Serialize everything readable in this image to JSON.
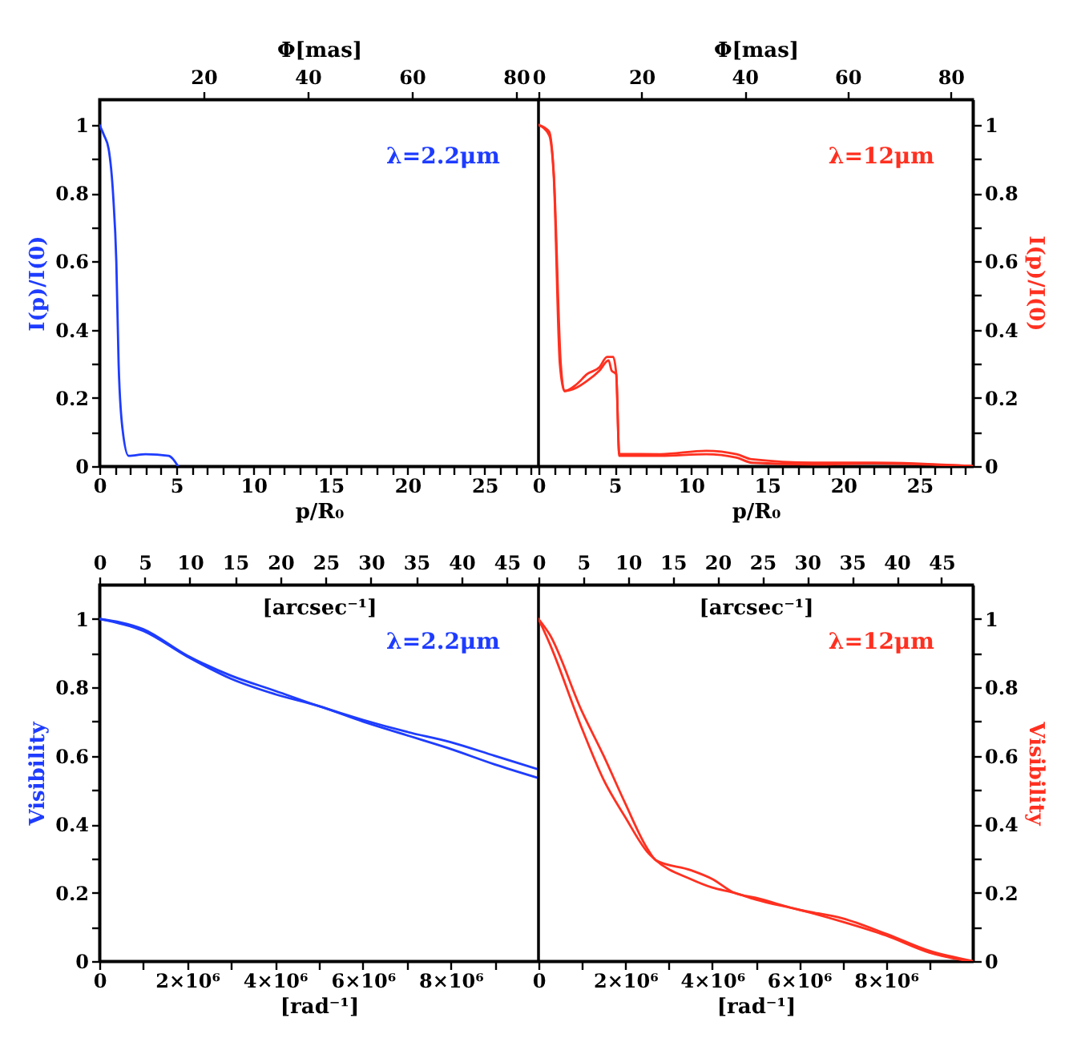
{
  "chart_data": [
    {
      "type": "line",
      "xlabel": "p/R₀",
      "ylabel": "I(p)/I(0)",
      "x2label": "Φ[mas]",
      "annotations": [
        "λ=2.2μm"
      ],
      "xlim": [
        0,
        28.5
      ],
      "xticks": [
        0,
        {
          "value": 1,
          "label": null
        },
        {
          "value": 2,
          "label": null
        },
        {
          "value": 3,
          "label": null
        },
        {
          "value": 4,
          "label": null
        },
        5,
        {
          "value": 6,
          "label": null
        },
        {
          "value": 7,
          "label": null
        },
        {
          "value": 8,
          "label": null
        },
        {
          "value": 9,
          "label": null
        },
        10,
        {
          "value": 11,
          "label": null
        },
        {
          "value": 12,
          "label": null
        },
        {
          "value": 13,
          "label": null
        },
        {
          "value": 14,
          "label": null
        },
        15,
        {
          "value": 16,
          "label": null
        },
        {
          "value": 17,
          "label": null
        },
        {
          "value": 18,
          "label": null
        },
        {
          "value": 19,
          "label": null
        },
        20,
        {
          "value": 21,
          "label": null
        },
        {
          "value": 22,
          "label": null
        },
        {
          "value": 23,
          "label": null
        },
        {
          "value": 24,
          "label": null
        },
        25,
        {
          "value": 26,
          "label": null
        },
        {
          "value": 27,
          "label": null
        },
        {
          "value": 28,
          "label": null
        }
      ],
      "x2lim": [
        0,
        84.3
      ],
      "x2ticks": [
        20,
        40,
        60,
        80
      ],
      "ylim": [
        0,
        1.075
      ],
      "yticks": [
        0,
        {
          "value": 0.1,
          "label": null
        },
        0.2,
        {
          "value": 0.3,
          "label": null
        },
        0.4,
        {
          "value": 0.5,
          "label": null
        },
        0.6,
        {
          "value": 0.7,
          "label": null
        },
        0.8,
        {
          "value": 0.9,
          "label": null
        },
        1
      ],
      "series": [
        {
          "color": "#1e3cff",
          "x": [
            0,
            0.3,
            0.6,
            0.9,
            1.1,
            1.25,
            1.5,
            1.9,
            3,
            4.5,
            5.1
          ],
          "values": [
            1,
            0.97,
            0.93,
            0.79,
            0.6,
            0.3,
            0.11,
            0.03,
            0.035,
            0.03,
            0
          ]
        }
      ]
    },
    {
      "type": "line",
      "xlabel": "p/R₀",
      "ylabel": "I(p)/I(0)",
      "x2label": "Φ[mas]",
      "annotations": [
        "λ=12μm"
      ],
      "xlim": [
        0,
        28.5
      ],
      "xticks": [
        0,
        {
          "value": 1,
          "label": null
        },
        {
          "value": 2,
          "label": null
        },
        {
          "value": 3,
          "label": null
        },
        {
          "value": 4,
          "label": null
        },
        5,
        {
          "value": 6,
          "label": null
        },
        {
          "value": 7,
          "label": null
        },
        {
          "value": 8,
          "label": null
        },
        {
          "value": 9,
          "label": null
        },
        10,
        {
          "value": 11,
          "label": null
        },
        {
          "value": 12,
          "label": null
        },
        {
          "value": 13,
          "label": null
        },
        {
          "value": 14,
          "label": null
        },
        15,
        {
          "value": 16,
          "label": null
        },
        {
          "value": 17,
          "label": null
        },
        {
          "value": 18,
          "label": null
        },
        {
          "value": 19,
          "label": null
        },
        20,
        {
          "value": 21,
          "label": null
        },
        {
          "value": 22,
          "label": null
        },
        {
          "value": 23,
          "label": null
        },
        {
          "value": 24,
          "label": null
        },
        25,
        {
          "value": 26,
          "label": null
        },
        {
          "value": 27,
          "label": null
        },
        {
          "value": 28,
          "label": null
        }
      ],
      "x2lim": [
        0,
        84.3
      ],
      "x2ticks": [
        0,
        20,
        40,
        60,
        80
      ],
      "ylim": [
        0,
        1.075
      ],
      "yticks": [
        0,
        {
          "value": 0.1,
          "label": null
        },
        0.2,
        {
          "value": 0.3,
          "label": null
        },
        0.4,
        {
          "value": 0.5,
          "label": null
        },
        0.6,
        {
          "value": 0.7,
          "label": null
        },
        0.8,
        {
          "value": 0.9,
          "label": null
        },
        1
      ],
      "series": [
        {
          "color": "#ff3020",
          "x": [
            0,
            0.7,
            1.0,
            1.46,
            1.7,
            2.5,
            3.2,
            4.0,
            4.5,
            4.9,
            5.1,
            5.3,
            8,
            11,
            13,
            14,
            18,
            22,
            28.5
          ],
          "values": [
            1,
            0.98,
            0.86,
            0.3,
            0.22,
            0.24,
            0.27,
            0.29,
            0.32,
            0.32,
            0.27,
            0.036,
            0.035,
            0.045,
            0.035,
            0.02,
            0.01,
            0.01,
            0
          ]
        },
        {
          "color": "#ff3020",
          "x": [
            0,
            0.7,
            1.0,
            1.4,
            1.7,
            2.5,
            3.2,
            4.0,
            4.6,
            4.8,
            5.1,
            5.3,
            8,
            11,
            13,
            14,
            18,
            22,
            28.5
          ],
          "values": [
            1,
            0.97,
            0.85,
            0.3,
            0.22,
            0.23,
            0.25,
            0.28,
            0.31,
            0.28,
            0.27,
            0.03,
            0.03,
            0.035,
            0.025,
            0.01,
            0.005,
            0.008,
            0
          ]
        }
      ]
    },
    {
      "type": "line",
      "xlabel": "[rad⁻¹]",
      "ylabel": "Visibility",
      "x2label": "[arcsec⁻¹]",
      "annotations": [
        "λ=2.2μm"
      ],
      "xlim": [
        0,
        10000000
      ],
      "xticks": [
        0,
        {
          "value": 1000000,
          "label": null
        },
        {
          "value": 2000000,
          "label": "2×10⁶"
        },
        {
          "value": 3000000,
          "label": null
        },
        {
          "value": 4000000,
          "label": "4×10⁶"
        },
        {
          "value": 5000000,
          "label": null
        },
        {
          "value": 6000000,
          "label": "6×10⁶"
        },
        {
          "value": 7000000,
          "label": null
        },
        {
          "value": 8000000,
          "label": "8×10⁶"
        },
        {
          "value": 9000000,
          "label": null
        }
      ],
      "x2lim": [
        0,
        48.5
      ],
      "x2ticks": [
        0,
        5,
        10,
        15,
        20,
        25,
        30,
        35,
        40,
        45
      ],
      "ylim": [
        0,
        1.1
      ],
      "yticks": [
        0,
        {
          "value": 0.1,
          "label": null
        },
        0.2,
        {
          "value": 0.3,
          "label": null
        },
        0.4,
        {
          "value": 0.5,
          "label": null
        },
        0.6,
        {
          "value": 0.7,
          "label": null
        },
        0.8,
        {
          "value": 0.9,
          "label": null
        },
        1
      ],
      "series": [
        {
          "color": "#1e3cff",
          "x": [
            0,
            1000000,
            2000000,
            3000000,
            4000000,
            5000000,
            6000000,
            7000000,
            8000000,
            9000000,
            10000000
          ],
          "values": [
            1,
            0.97,
            0.893,
            0.834,
            0.79,
            0.745,
            0.705,
            0.67,
            0.64,
            0.6,
            0.56
          ]
        },
        {
          "color": "#1e3cff",
          "x": [
            0,
            1000000,
            2000000,
            3000000,
            4000000,
            5000000,
            6000000,
            7000000,
            8000000,
            9000000,
            10000000
          ],
          "values": [
            1,
            0.965,
            0.89,
            0.825,
            0.78,
            0.745,
            0.7,
            0.66,
            0.62,
            0.575,
            0.535
          ]
        }
      ]
    },
    {
      "type": "line",
      "xlabel": "[rad⁻¹]",
      "ylabel": "Visibility",
      "x2label": "[arcsec⁻¹]",
      "annotations": [
        "λ=12μm"
      ],
      "xlim": [
        0,
        10000000
      ],
      "xticks": [
        0,
        {
          "value": 1000000,
          "label": null
        },
        {
          "value": 2000000,
          "label": "2×10⁶"
        },
        {
          "value": 3000000,
          "label": null
        },
        {
          "value": 4000000,
          "label": "4×10⁶"
        },
        {
          "value": 5000000,
          "label": null
        },
        {
          "value": 6000000,
          "label": "6×10⁶"
        },
        {
          "value": 7000000,
          "label": null
        },
        {
          "value": 8000000,
          "label": "8×10⁶"
        },
        {
          "value": 9000000,
          "label": null
        }
      ],
      "x2lim": [
        0,
        48.5
      ],
      "x2ticks": [
        0,
        5,
        10,
        15,
        20,
        25,
        30,
        35,
        40,
        45
      ],
      "ylim": [
        0,
        1.1
      ],
      "yticks": [
        0,
        {
          "value": 0.1,
          "label": null
        },
        0.2,
        {
          "value": 0.3,
          "label": null
        },
        0.4,
        {
          "value": 0.5,
          "label": null
        },
        0.6,
        {
          "value": 0.7,
          "label": null
        },
        0.8,
        {
          "value": 0.9,
          "label": null
        },
        1
      ],
      "series": [
        {
          "color": "#ff3020",
          "x": [
            0,
            250000,
            1000000,
            1500000,
            2000000,
            2500000,
            2700000,
            3500000,
            4000000,
            4500000,
            5000000,
            6000000,
            7000000,
            8000000,
            9000000,
            10000000
          ],
          "values": [
            1,
            0.956,
            0.73,
            0.6,
            0.46,
            0.33,
            0.295,
            0.266,
            0.24,
            0.2,
            0.185,
            0.15,
            0.125,
            0.08,
            0.03,
            0
          ]
        },
        {
          "color": "#ff3020",
          "x": [
            0,
            250000,
            1000000,
            1500000,
            2000000,
            2500000,
            2700000,
            3500000,
            4000000,
            4500000,
            5000000,
            6000000,
            7000000,
            8000000,
            9000000,
            9900000
          ],
          "values": [
            1,
            0.93,
            0.68,
            0.53,
            0.42,
            0.32,
            0.295,
            0.24,
            0.215,
            0.2,
            0.18,
            0.15,
            0.115,
            0.075,
            0.025,
            0
          ]
        }
      ]
    }
  ]
}
